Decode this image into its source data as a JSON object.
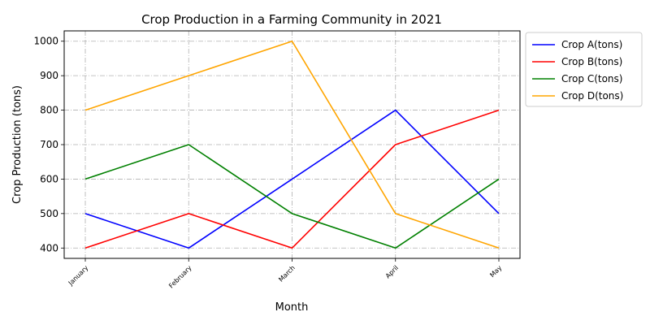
{
  "chart_data": {
    "type": "line",
    "title": "Crop Production in a Farming Community in 2021",
    "xlabel": "Month",
    "ylabel": "Crop Production (tons)",
    "categories": [
      "January",
      "February",
      "March",
      "April",
      "May"
    ],
    "ylim": [
      370,
      1030
    ],
    "yticks": [
      400,
      500,
      600,
      700,
      800,
      900,
      1000
    ],
    "grid": true,
    "legend_position": "outside-top-right",
    "series": [
      {
        "name": "Crop A(tons)",
        "color": "#0000ff",
        "values": [
          500,
          400,
          600,
          800,
          500
        ]
      },
      {
        "name": "Crop B(tons)",
        "color": "#ff0000",
        "values": [
          400,
          500,
          400,
          700,
          800
        ]
      },
      {
        "name": "Crop C(tons)",
        "color": "#008000",
        "values": [
          600,
          700,
          500,
          400,
          600
        ]
      },
      {
        "name": "Crop D(tons)",
        "color": "#ffa500",
        "values": [
          800,
          900,
          1000,
          500,
          400
        ]
      }
    ]
  }
}
